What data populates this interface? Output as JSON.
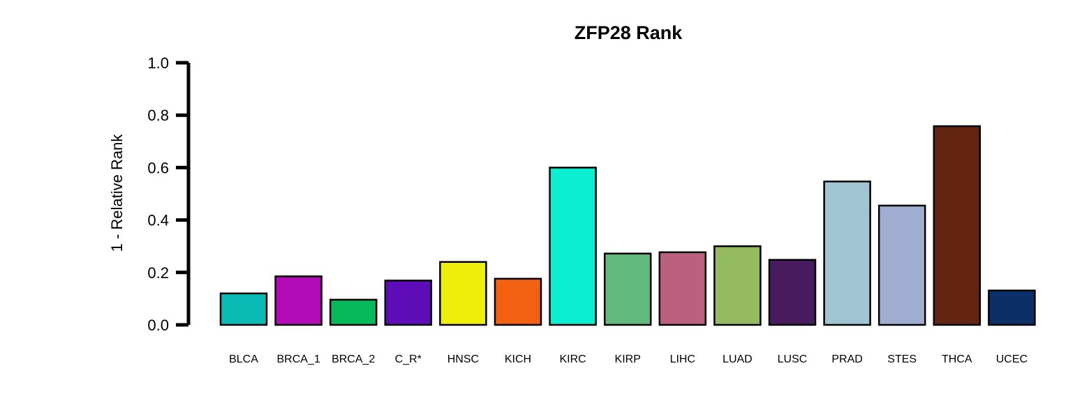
{
  "chart_data": {
    "type": "bar",
    "title": "ZFP28 Rank",
    "ylabel": "1 - Relative Rank",
    "xlabel": "",
    "ylim": [
      0,
      1
    ],
    "yticks": [
      "0.0",
      "0.2",
      "0.4",
      "0.6",
      "0.8",
      "1.0"
    ],
    "ytick_values": [
      0,
      0.2,
      0.4,
      0.6,
      0.8,
      1.0
    ],
    "categories": [
      "BLCA",
      "BRCA_1",
      "BRCA_2",
      "C_R*",
      "HNSC",
      "KICH",
      "KIRC",
      "KIRP",
      "LIHC",
      "LUAD",
      "LUSC",
      "PRAD",
      "STES",
      "THCA",
      "UCEC"
    ],
    "values": [
      0.12,
      0.185,
      0.096,
      0.169,
      0.24,
      0.176,
      0.6,
      0.272,
      0.277,
      0.3,
      0.248,
      0.547,
      0.455,
      0.758,
      0.131
    ],
    "colors": [
      "#0ABAB5",
      "#B30BB8",
      "#07B95A",
      "#5E0BB8",
      "#EEEE0B",
      "#F26111",
      "#0CEED1",
      "#60BA7E",
      "#BC6080",
      "#95BB60",
      "#481A5E",
      "#A0C4D2",
      "#9EADD0",
      "#632512",
      "#0D2F68"
    ],
    "grid": false,
    "legend": "none"
  }
}
